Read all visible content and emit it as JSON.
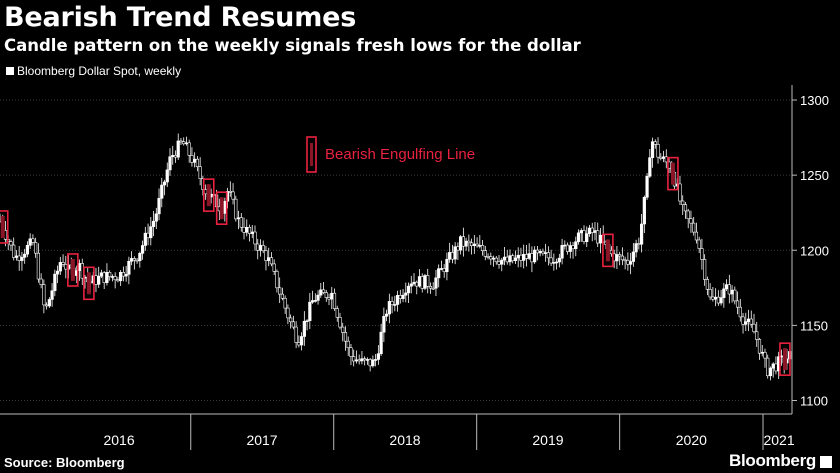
{
  "header": {
    "title": "Bearish Trend Resumes",
    "subtitle": "Candle pattern on the weekly signals fresh lows for the dollar"
  },
  "legend": {
    "label": "Bloomberg Dollar Spot, weekly"
  },
  "annotation": {
    "label": "Bearish Engulfing Line"
  },
  "footer": {
    "source": "Source: Bloomberg",
    "brand": "Bloomberg"
  },
  "colors": {
    "background": "#000000",
    "candle": "#ffffff",
    "highlight": "#e8223f",
    "grid": "#4a4a4a",
    "axis": "#bbbbbb"
  },
  "chart_data": {
    "type": "candlestick",
    "title": "Bearish Trend Resumes",
    "ylim": [
      1095,
      1310
    ],
    "yticks": [
      1100,
      1150,
      1200,
      1250,
      1300
    ],
    "xlim": [
      "2015-09-01",
      "2021-03-15"
    ],
    "xticks": [
      {
        "label": "2016",
        "date": "2016-07-01"
      },
      {
        "label": "2017",
        "date": "2017-07-01"
      },
      {
        "label": "2018",
        "date": "2018-07-01"
      },
      {
        "label": "2019",
        "date": "2019-07-01"
      },
      {
        "label": "2020",
        "date": "2020-07-01"
      },
      {
        "label": "2021",
        "date": "2021-02-10"
      }
    ],
    "year_boundaries": [
      "2016-12-31",
      "2017-12-31",
      "2018-12-31",
      "2019-12-31",
      "2020-12-31"
    ],
    "grid": true,
    "legend_position": "top-left",
    "series": [
      {
        "name": "Bloomberg Dollar Spot, weekly",
        "anchors": [
          [
            "2015-09-01",
            1220
          ],
          [
            "2015-10-10",
            1195
          ],
          [
            "2015-11-25",
            1205
          ],
          [
            "2015-12-25",
            1158
          ],
          [
            "2016-02-05",
            1195
          ],
          [
            "2016-02-25",
            1185
          ],
          [
            "2016-03-20",
            1190
          ],
          [
            "2016-04-15",
            1178
          ],
          [
            "2016-05-15",
            1182
          ],
          [
            "2016-07-01",
            1183
          ],
          [
            "2016-08-20",
            1198
          ],
          [
            "2016-10-01",
            1222
          ],
          [
            "2016-11-10",
            1262
          ],
          [
            "2016-12-10",
            1272
          ],
          [
            "2017-01-05",
            1260
          ],
          [
            "2017-02-10",
            1238
          ],
          [
            "2017-03-20",
            1228
          ],
          [
            "2017-04-05",
            1240
          ],
          [
            "2017-05-01",
            1220
          ],
          [
            "2017-07-15",
            1195
          ],
          [
            "2017-09-10",
            1153
          ],
          [
            "2017-10-01",
            1140
          ],
          [
            "2017-11-10",
            1168
          ],
          [
            "2017-12-25",
            1172
          ],
          [
            "2018-02-10",
            1130
          ],
          [
            "2018-03-15",
            1125
          ],
          [
            "2018-04-15",
            1125
          ],
          [
            "2018-05-15",
            1160
          ],
          [
            "2018-07-15",
            1180
          ],
          [
            "2018-09-10",
            1178
          ],
          [
            "2018-11-20",
            1205
          ],
          [
            "2019-01-15",
            1200
          ],
          [
            "2019-03-15",
            1192
          ],
          [
            "2019-05-15",
            1196
          ],
          [
            "2019-07-15",
            1195
          ],
          [
            "2019-09-15",
            1208
          ],
          [
            "2019-10-25",
            1212
          ],
          [
            "2019-12-10",
            1197
          ],
          [
            "2020-01-20",
            1192
          ],
          [
            "2020-02-20",
            1208
          ],
          [
            "2020-03-10",
            1245
          ],
          [
            "2020-03-20",
            1275
          ],
          [
            "2020-04-10",
            1262
          ],
          [
            "2020-05-10",
            1256
          ],
          [
            "2020-06-10",
            1225
          ],
          [
            "2020-07-15",
            1210
          ],
          [
            "2020-08-20",
            1165
          ],
          [
            "2020-10-05",
            1175
          ],
          [
            "2020-11-10",
            1155
          ],
          [
            "2020-12-10",
            1145
          ],
          [
            "2021-01-10",
            1120
          ],
          [
            "2021-02-10",
            1125
          ],
          [
            "2021-03-12",
            1130
          ]
        ]
      }
    ],
    "bearish_engulfing_dates": [
      "2015-09-08",
      "2016-03-05",
      "2016-04-15",
      "2017-02-15",
      "2017-03-20",
      "2019-12-01",
      "2020-05-15",
      "2021-02-25"
    ]
  }
}
